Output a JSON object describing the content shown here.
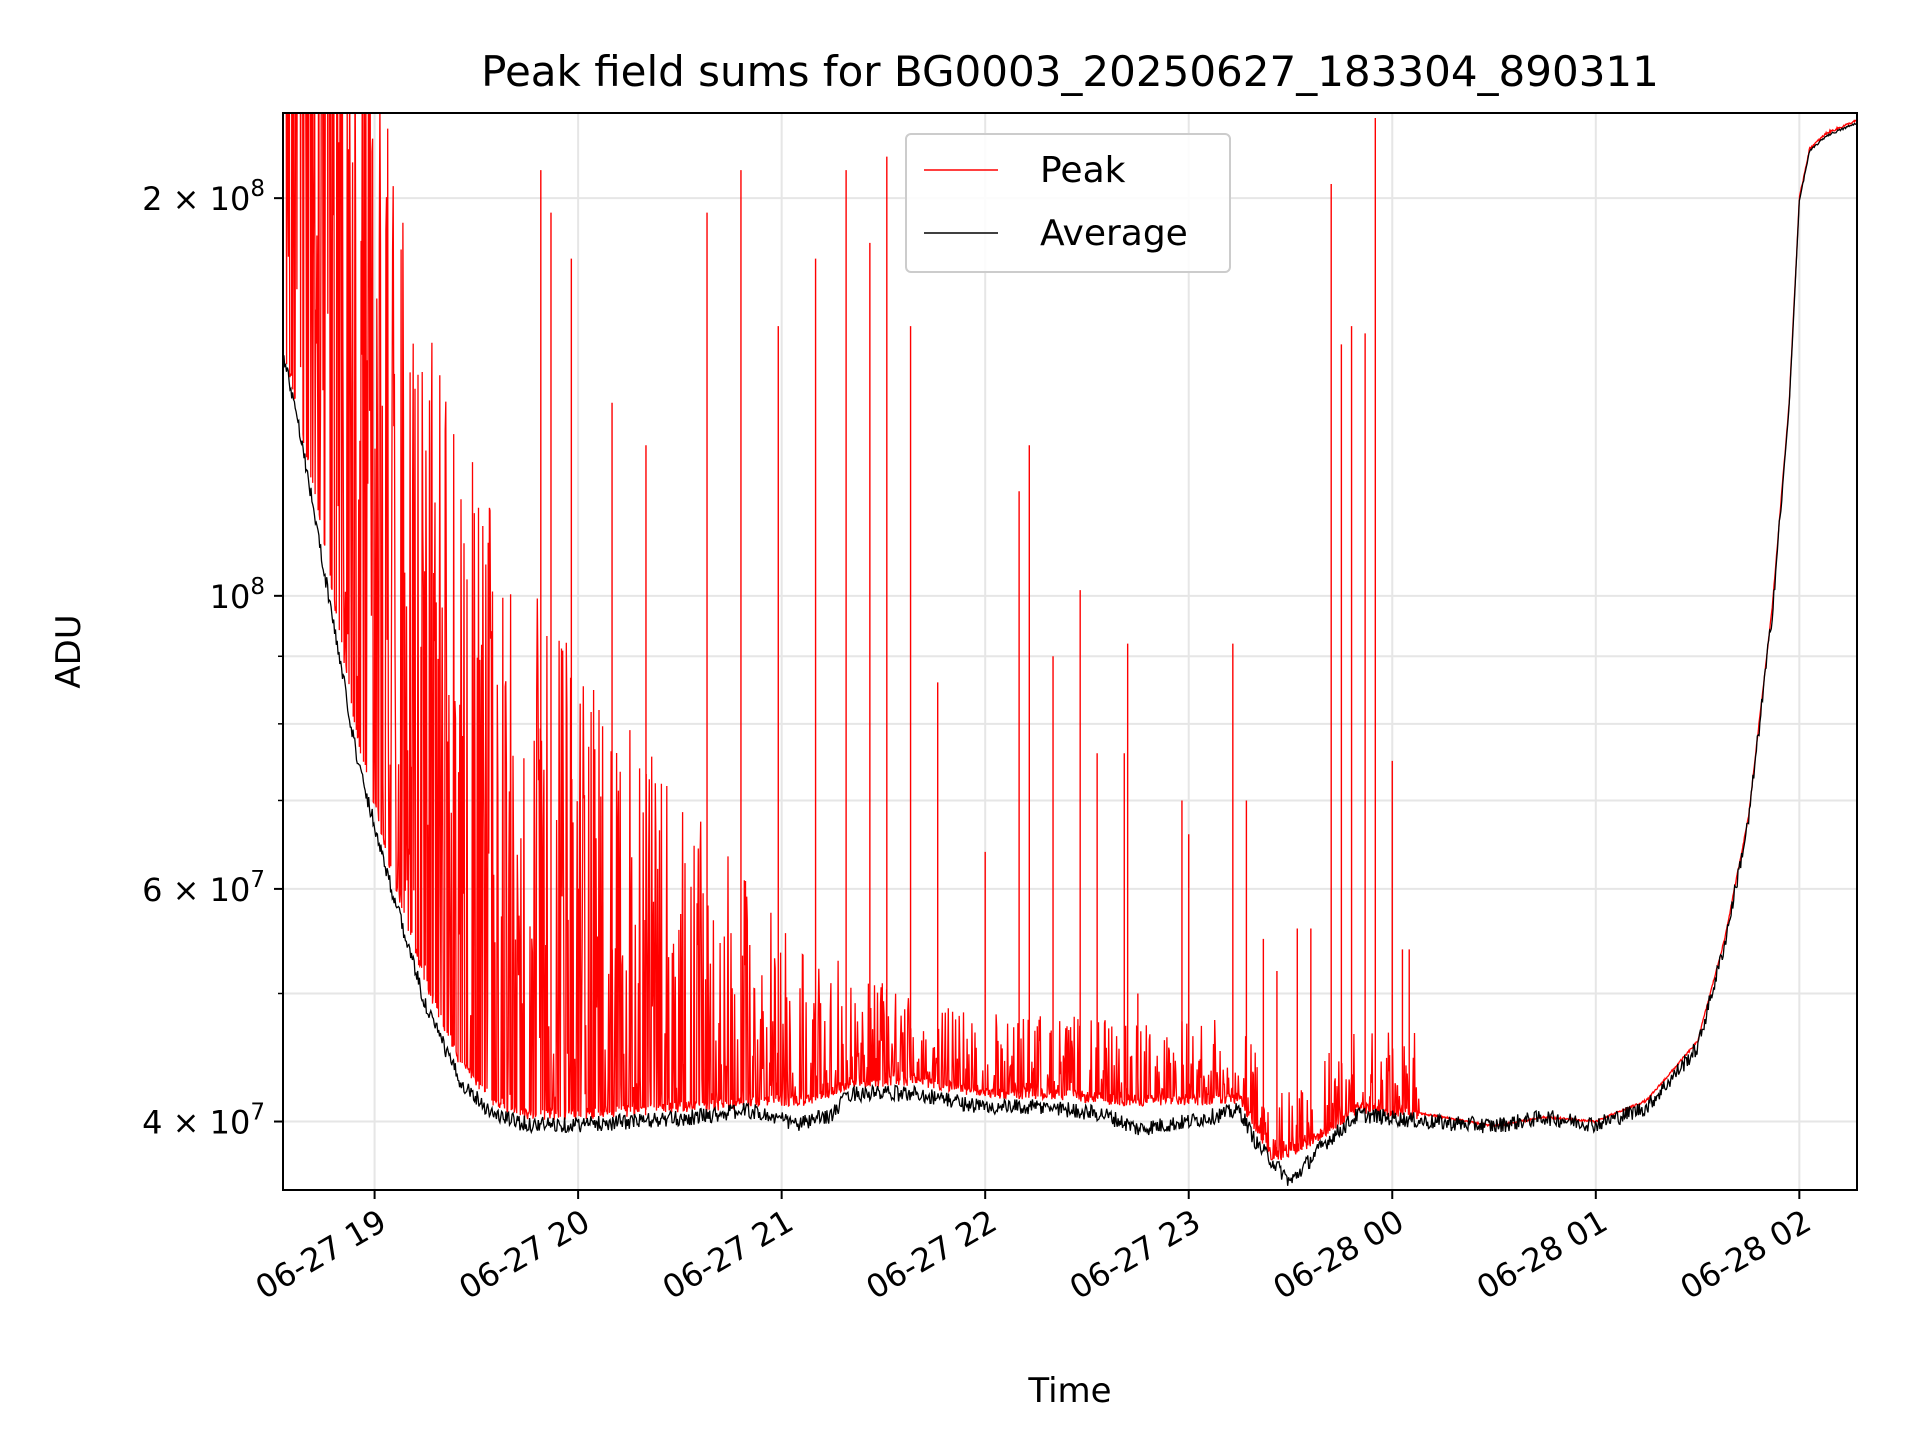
{
  "chart_data": {
    "type": "line",
    "title": "Peak field sums for BG0003_20250627_183304_890311",
    "xlabel": "Time",
    "ylabel": "ADU",
    "y_scale": "log",
    "ylim": [
      35500000,
      232000000
    ],
    "xlim": [
      "2025-06-27 18:33",
      "2025-06-28 02:17"
    ],
    "grid": true,
    "legend_position": "top-center",
    "x_ticks": [
      {
        "label": "06-27 19",
        "value": "2025-06-27 19:00"
      },
      {
        "label": "06-27 20",
        "value": "2025-06-27 20:00"
      },
      {
        "label": "06-27 21",
        "value": "2025-06-27 21:00"
      },
      {
        "label": "06-27 22",
        "value": "2025-06-27 22:00"
      },
      {
        "label": "06-27 23",
        "value": "2025-06-27 23:00"
      },
      {
        "label": "06-28 00",
        "value": "2025-06-28 00:00"
      },
      {
        "label": "06-28 01",
        "value": "2025-06-28 01:00"
      },
      {
        "label": "06-28 02",
        "value": "2025-06-28 02:00"
      }
    ],
    "y_ticks_major": [
      {
        "label": "4 × 10^7",
        "base": "4",
        "exp": "7",
        "value": 40000000
      },
      {
        "label": "6 × 10^7",
        "base": "6",
        "exp": "7",
        "value": 60000000
      },
      {
        "label": "10^8",
        "base": "",
        "exp": "8",
        "value": 100000000
      },
      {
        "label": "2 × 10^8",
        "base": "2",
        "exp": "8",
        "value": 200000000
      }
    ],
    "y_ticks_minor": [
      50000000,
      70000000,
      80000000,
      90000000
    ],
    "series": [
      {
        "name": "Peak",
        "color": "#ff0000",
        "baseline": [
          [
            "2025-06-27 18:33",
            155000000
          ],
          [
            "2025-06-27 18:37",
            140000000
          ],
          [
            "2025-06-27 18:45",
            110000000
          ],
          [
            "2025-06-27 18:55",
            78000000
          ],
          [
            "2025-06-27 19:05",
            62000000
          ],
          [
            "2025-06-27 19:15",
            51000000
          ],
          [
            "2025-06-27 19:25",
            44500000
          ],
          [
            "2025-06-27 19:35",
            41500000
          ],
          [
            "2025-06-27 19:45",
            40500000
          ],
          [
            "2025-06-27 20:00",
            40500000
          ],
          [
            "2025-06-27 20:30",
            41000000
          ],
          [
            "2025-06-27 21:00",
            41500000
          ],
          [
            "2025-06-27 21:10",
            41500000
          ],
          [
            "2025-06-27 21:20",
            42800000
          ],
          [
            "2025-06-27 21:40",
            43000000
          ],
          [
            "2025-06-27 22:00",
            42000000
          ],
          [
            "2025-06-27 22:20",
            42000000
          ],
          [
            "2025-06-27 22:40",
            41500000
          ],
          [
            "2025-06-27 23:00",
            41500000
          ],
          [
            "2025-06-27 23:15",
            41700000
          ],
          [
            "2025-06-27 23:25",
            37500000
          ],
          [
            "2025-06-27 23:35",
            38500000
          ],
          [
            "2025-06-27 23:50",
            41000000
          ],
          [
            "2025-06-28 00:10",
            40500000
          ],
          [
            "2025-06-28 00:30",
            39700000
          ],
          [
            "2025-06-28 00:45",
            40300000
          ],
          [
            "2025-06-28 01:00",
            40000000
          ],
          [
            "2025-06-28 01:15",
            41500000
          ],
          [
            "2025-06-28 01:30",
            46000000
          ],
          [
            "2025-06-28 01:38",
            55000000
          ],
          [
            "2025-06-28 01:45",
            68000000
          ],
          [
            "2025-06-28 01:52",
            98000000
          ],
          [
            "2025-06-28 01:57",
            140000000
          ],
          [
            "2025-06-28 02:00",
            200000000
          ],
          [
            "2025-06-28 02:03",
            218000000
          ],
          [
            "2025-06-28 02:08",
            224000000
          ],
          [
            "2025-06-28 02:17",
            229000000
          ]
        ],
        "spikes": [
          [
            "2025-06-27 19:49",
            210000000
          ],
          [
            "2025-06-27 19:52",
            195000000
          ],
          [
            "2025-06-27 19:58",
            180000000
          ],
          [
            "2025-06-27 20:10",
            140000000
          ],
          [
            "2025-06-27 20:20",
            130000000
          ],
          [
            "2025-06-27 20:38",
            195000000
          ],
          [
            "2025-06-27 20:48",
            210000000
          ],
          [
            "2025-06-27 20:59",
            160000000
          ],
          [
            "2025-06-27 21:10",
            180000000
          ],
          [
            "2025-06-27 21:19",
            210000000
          ],
          [
            "2025-06-27 21:26",
            185000000
          ],
          [
            "2025-06-27 21:31",
            215000000
          ],
          [
            "2025-06-27 21:38",
            160000000
          ],
          [
            "2025-06-27 21:46",
            86000000
          ],
          [
            "2025-06-27 22:00",
            64000000
          ],
          [
            "2025-06-27 22:10",
            120000000
          ],
          [
            "2025-06-27 22:13",
            130000000
          ],
          [
            "2025-06-27 22:20",
            90000000
          ],
          [
            "2025-06-27 22:28",
            101000000
          ],
          [
            "2025-06-27 22:33",
            76000000
          ],
          [
            "2025-06-27 22:41",
            76000000
          ],
          [
            "2025-06-27 22:42",
            92000000
          ],
          [
            "2025-06-27 22:45",
            50000000
          ],
          [
            "2025-06-27 22:58",
            70000000
          ],
          [
            "2025-06-27 23:00",
            66000000
          ],
          [
            "2025-06-27 23:13",
            92000000
          ],
          [
            "2025-06-27 23:17",
            70000000
          ],
          [
            "2025-06-27 23:22",
            55000000
          ],
          [
            "2025-06-27 23:26",
            52000000
          ],
          [
            "2025-06-27 23:32",
            56000000
          ],
          [
            "2025-06-27 23:36",
            56000000
          ],
          [
            "2025-06-27 23:42",
            205000000
          ],
          [
            "2025-06-27 23:45",
            155000000
          ],
          [
            "2025-06-27 23:48",
            160000000
          ],
          [
            "2025-06-27 23:52",
            158000000
          ],
          [
            "2025-06-27 23:55",
            230000000
          ],
          [
            "2025-06-28 00:00",
            75000000
          ],
          [
            "2025-06-28 00:03",
            54000000
          ],
          [
            "2025-06-28 00:05",
            54000000
          ]
        ]
      },
      {
        "name": "Average",
        "color": "#000000",
        "baseline": [
          [
            "2025-06-27 18:33",
            152000000
          ],
          [
            "2025-06-27 18:37",
            138000000
          ],
          [
            "2025-06-27 18:45",
            105000000
          ],
          [
            "2025-06-27 18:55",
            75000000
          ],
          [
            "2025-06-27 19:05",
            60000000
          ],
          [
            "2025-06-27 19:15",
            49000000
          ],
          [
            "2025-06-27 19:25",
            43000000
          ],
          [
            "2025-06-27 19:35",
            40500000
          ],
          [
            "2025-06-27 19:45",
            39800000
          ],
          [
            "2025-06-27 20:00",
            39800000
          ],
          [
            "2025-06-27 20:30",
            40200000
          ],
          [
            "2025-06-27 20:50",
            40800000
          ],
          [
            "2025-06-27 21:05",
            39800000
          ],
          [
            "2025-06-27 21:15",
            40500000
          ],
          [
            "2025-06-27 21:20",
            42000000
          ],
          [
            "2025-06-27 21:40",
            42000000
          ],
          [
            "2025-06-27 22:00",
            41000000
          ],
          [
            "2025-06-27 22:20",
            41000000
          ],
          [
            "2025-06-27 22:35",
            40500000
          ],
          [
            "2025-06-27 22:45",
            39500000
          ],
          [
            "2025-06-27 23:00",
            40000000
          ],
          [
            "2025-06-27 23:15",
            40800000
          ],
          [
            "2025-06-27 23:20",
            38500000
          ],
          [
            "2025-06-27 23:30",
            36000000
          ],
          [
            "2025-06-27 23:40",
            38500000
          ],
          [
            "2025-06-27 23:50",
            40500000
          ],
          [
            "2025-06-28 00:10",
            40000000
          ],
          [
            "2025-06-28 00:30",
            39700000
          ],
          [
            "2025-06-28 00:45",
            40300000
          ],
          [
            "2025-06-28 01:00",
            39800000
          ],
          [
            "2025-06-28 01:15",
            41000000
          ],
          [
            "2025-06-28 01:30",
            45500000
          ],
          [
            "2025-06-28 01:38",
            54500000
          ],
          [
            "2025-06-28 01:45",
            67500000
          ],
          [
            "2025-06-28 01:52",
            97000000
          ],
          [
            "2025-06-28 01:57",
            139000000
          ],
          [
            "2025-06-28 02:00",
            199000000
          ],
          [
            "2025-06-28 02:03",
            217000000
          ],
          [
            "2025-06-28 02:08",
            223000000
          ],
          [
            "2025-06-28 02:17",
            228000000
          ]
        ]
      }
    ]
  }
}
